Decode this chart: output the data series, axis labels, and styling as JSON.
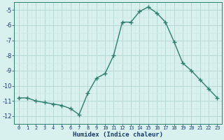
{
  "x": [
    0,
    1,
    2,
    3,
    4,
    5,
    6,
    7,
    8,
    9,
    10,
    11,
    12,
    13,
    14,
    15,
    16,
    17,
    18,
    19,
    20,
    21,
    22,
    23
  ],
  "y": [
    -10.8,
    -10.8,
    -11.0,
    -11.1,
    -11.2,
    -11.3,
    -11.5,
    -11.9,
    -10.5,
    -9.5,
    -9.2,
    -8.0,
    -5.8,
    -5.8,
    -5.1,
    -4.8,
    -5.2,
    -5.8,
    -7.1,
    -8.5,
    -9.0,
    -9.6,
    -10.2,
    -10.8
  ],
  "line_color": "#2e7d6e",
  "marker": "+",
  "marker_size": 4,
  "bg_color": "#d8f0ee",
  "grid_major_color": "#b8d8d5",
  "grid_minor_color": "#cce8e5",
  "xlabel": "Humidex (Indice chaleur)",
  "xlim": [
    -0.5,
    23.5
  ],
  "ylim": [
    -12.5,
    -4.5
  ],
  "xtick_labels": [
    "0",
    "1",
    "2",
    "3",
    "4",
    "5",
    "6",
    "7",
    "8",
    "9",
    "10",
    "11",
    "12",
    "13",
    "14",
    "15",
    "16",
    "17",
    "18",
    "19",
    "20",
    "21",
    "22",
    "23"
  ],
  "ytick_values": [
    -12,
    -11,
    -10,
    -9,
    -8,
    -7,
    -6,
    -5
  ],
  "xlabel_color": "#1a3a6e",
  "tick_color": "#1a3a6e",
  "spine_color": "#2e7d6e"
}
